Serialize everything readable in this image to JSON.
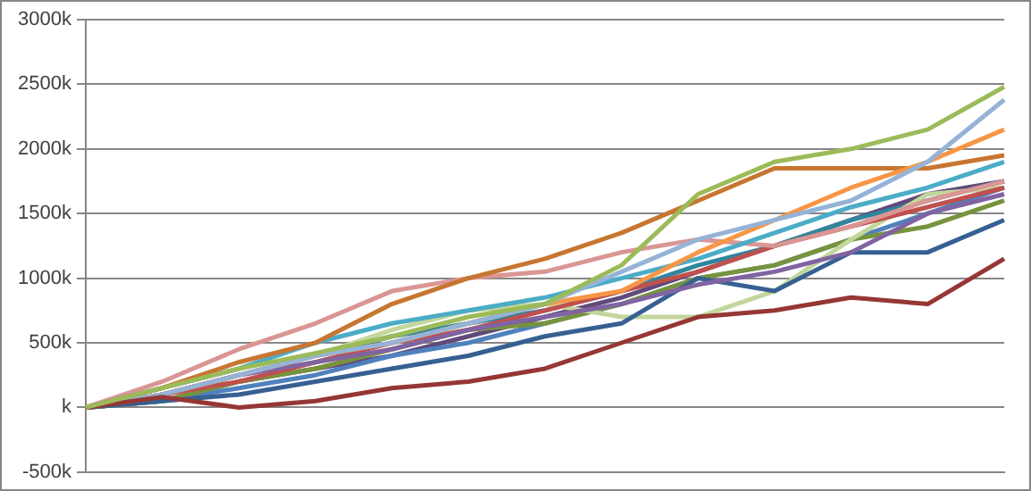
{
  "chart_data": {
    "type": "line",
    "categories": [
      null,
      null,
      null,
      null,
      null,
      null,
      null,
      null,
      null,
      null,
      null,
      null,
      null
    ],
    "ylim": [
      -500000,
      3000000
    ],
    "yticks": [
      {
        "value": -500000,
        "label": "-500k"
      },
      {
        "value": 0,
        "label": "k"
      },
      {
        "value": 500000,
        "label": "500k"
      },
      {
        "value": 1000000,
        "label": "1000k"
      },
      {
        "value": 1500000,
        "label": "1500k"
      },
      {
        "value": 2000000,
        "label": "2000k"
      },
      {
        "value": 2500000,
        "label": "2500k"
      },
      {
        "value": 3000000,
        "label": "3000k"
      }
    ],
    "grid": "y",
    "legend": false,
    "marker": "none",
    "line_style": "solid",
    "tick_labels": "y",
    "series": [
      {
        "color": "#9bbb59",
        "values": [
          0,
          150000,
          300000,
          420000,
          550000,
          700000,
          800000,
          1100000,
          1650000,
          1900000,
          2000000,
          2150000,
          2480000
        ]
      },
      {
        "color": "#953735",
        "values": [
          0,
          80000,
          0,
          50000,
          150000,
          200000,
          300000,
          500000,
          700000,
          750000,
          850000,
          800000,
          1150000
        ]
      },
      {
        "color": "#95b3d7",
        "values": [
          0,
          100000,
          250000,
          400000,
          500000,
          650000,
          800000,
          1050000,
          1300000,
          1450000,
          1600000,
          1900000,
          2380000
        ]
      },
      {
        "color": "#f79646",
        "values": [
          0,
          100000,
          250000,
          400000,
          500000,
          650000,
          800000,
          900000,
          1200000,
          1450000,
          1700000,
          1900000,
          2150000
        ]
      },
      {
        "color": "#c77631",
        "values": [
          0,
          150000,
          350000,
          500000,
          800000,
          1000000,
          1150000,
          1350000,
          1600000,
          1850000,
          1850000,
          1850000,
          1950000
        ]
      },
      {
        "color": "#4bacc6",
        "values": [
          0,
          150000,
          300000,
          500000,
          650000,
          750000,
          850000,
          1000000,
          1150000,
          1350000,
          1550000,
          1700000,
          1900000
        ]
      },
      {
        "color": "#d99694",
        "values": [
          0,
          200000,
          450000,
          650000,
          900000,
          1000000,
          1050000,
          1200000,
          1300000,
          1250000,
          1400000,
          1600000,
          1750000
        ]
      },
      {
        "color": "#8064a2",
        "values": [
          0,
          100000,
          250000,
          350000,
          450000,
          600000,
          700000,
          800000,
          950000,
          1050000,
          1200000,
          1500000,
          1650000
        ]
      },
      {
        "color": "#376092",
        "values": [
          0,
          50000,
          100000,
          200000,
          300000,
          400000,
          550000,
          650000,
          1000000,
          900000,
          1200000,
          1200000,
          1450000
        ]
      },
      {
        "color": "#c0504d",
        "values": [
          0,
          100000,
          200000,
          350000,
          500000,
          600000,
          750000,
          900000,
          1050000,
          1250000,
          1400000,
          1550000,
          1700000
        ]
      },
      {
        "color": "#c3d69b",
        "values": [
          0,
          100000,
          250000,
          400000,
          600000,
          750000,
          800000,
          700000,
          700000,
          900000,
          1300000,
          1650000,
          1700000
        ]
      },
      {
        "color": "#77933c",
        "values": [
          0,
          50000,
          200000,
          300000,
          450000,
          600000,
          650000,
          800000,
          1000000,
          1100000,
          1300000,
          1400000,
          1600000
        ]
      },
      {
        "color": "#4f81bd",
        "values": [
          0,
          50000,
          150000,
          250000,
          400000,
          500000,
          650000,
          800000,
          1000000,
          1100000,
          1300000,
          1500000,
          1700000
        ]
      },
      {
        "color": "#31859c",
        "values": [
          0,
          100000,
          250000,
          400000,
          550000,
          650000,
          750000,
          900000,
          1100000,
          1250000,
          1450000,
          1600000,
          1750000
        ]
      },
      {
        "color": "#604a7b",
        "values": [
          0,
          50000,
          200000,
          300000,
          400000,
          550000,
          700000,
          850000,
          1050000,
          1250000,
          1450000,
          1650000,
          1750000
        ]
      }
    ]
  }
}
